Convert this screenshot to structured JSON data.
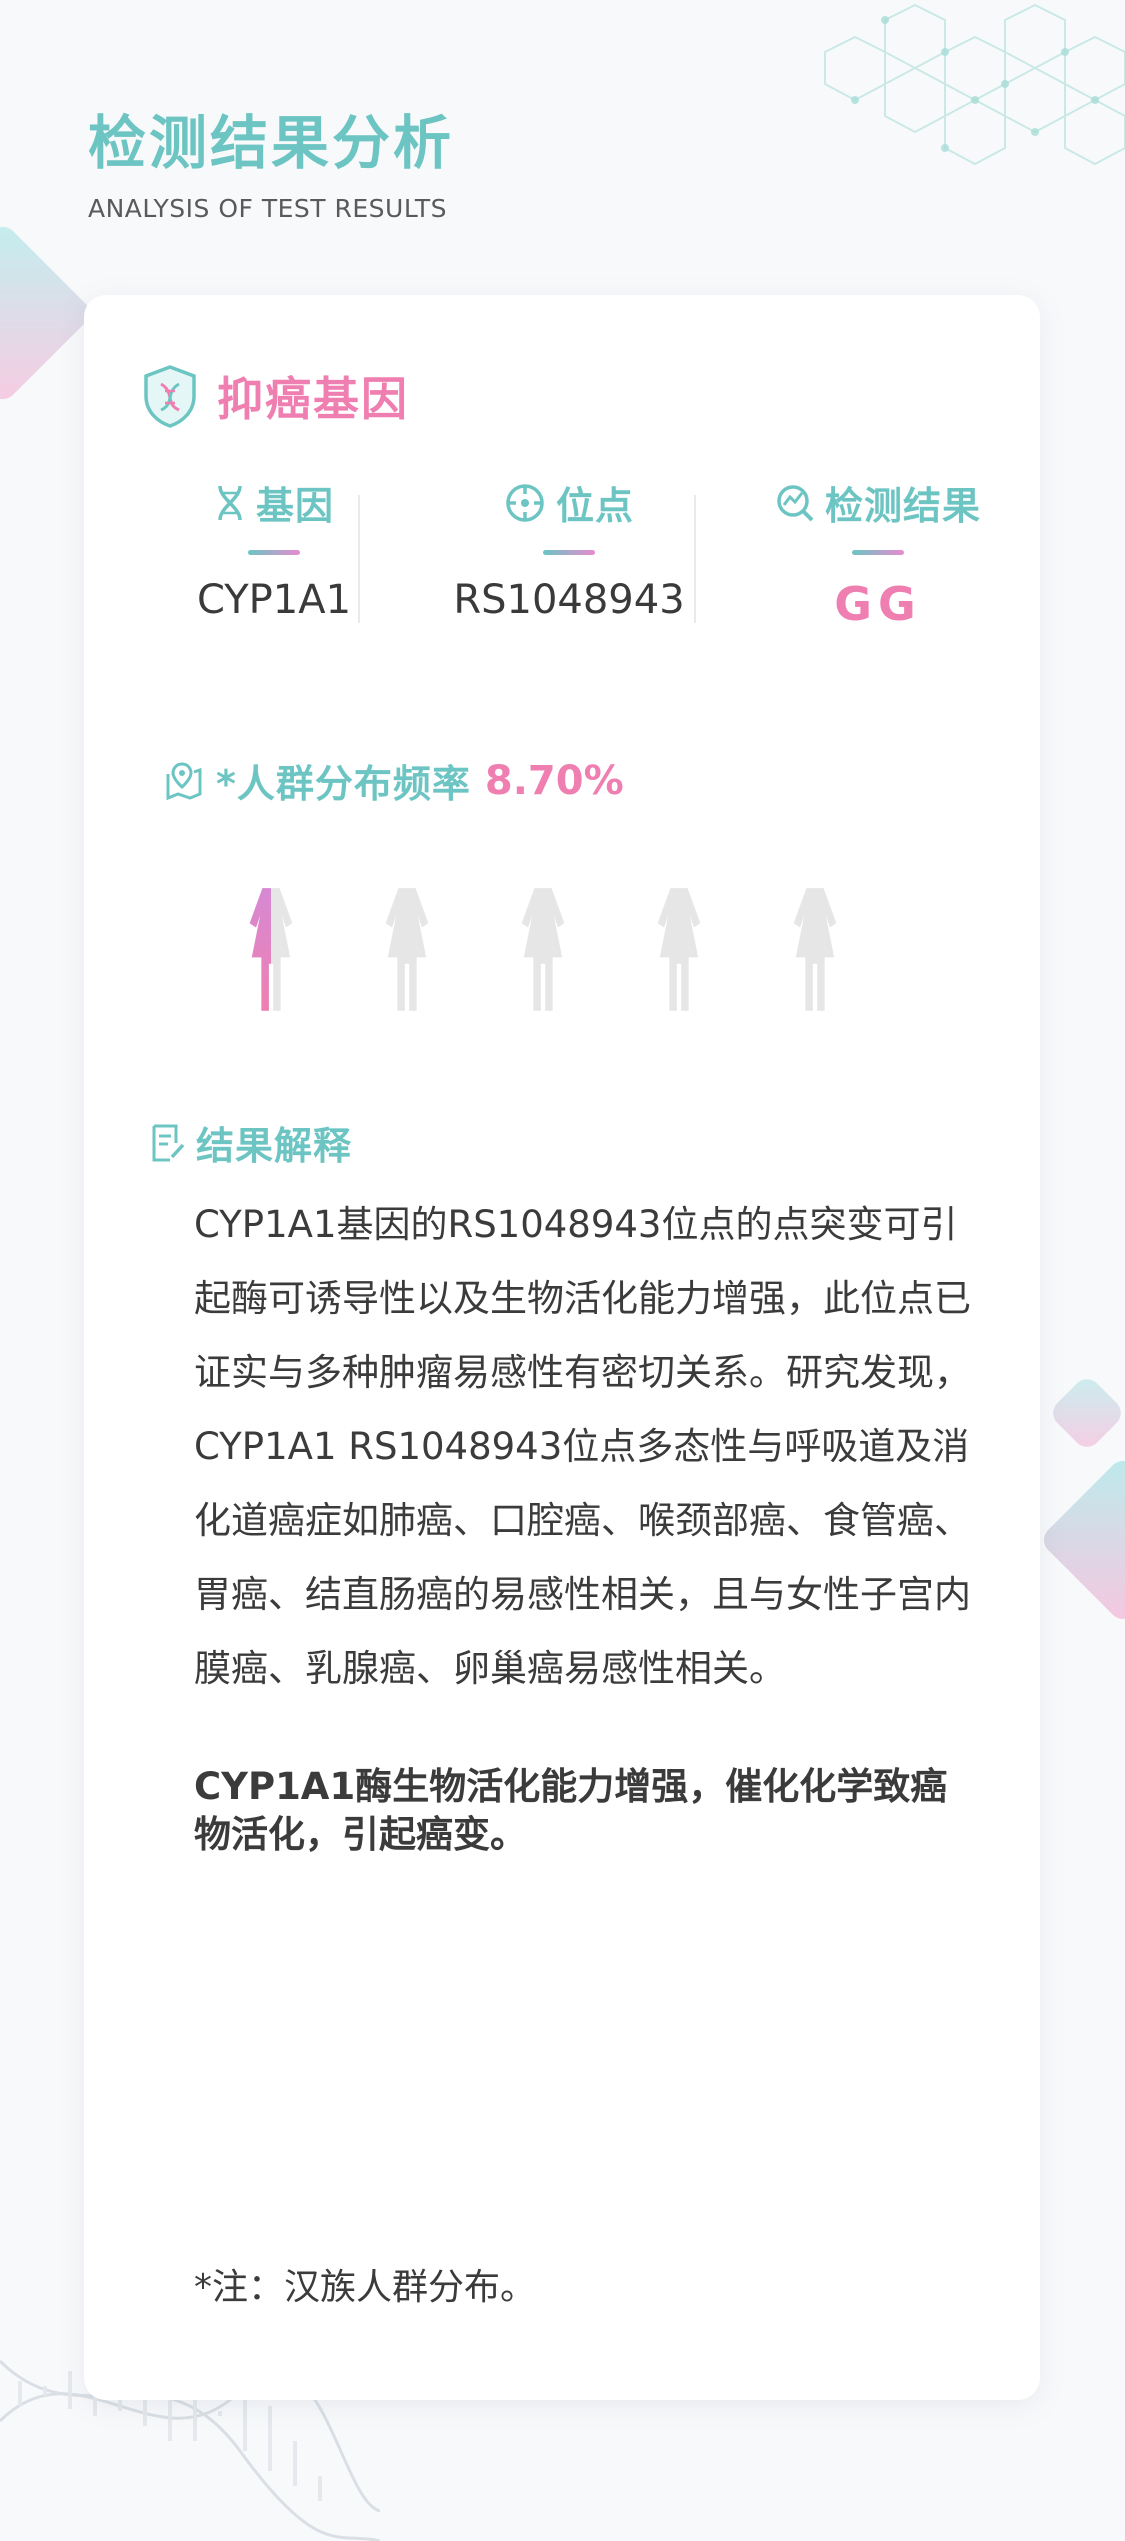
{
  "header": {
    "title": "检测结果分析",
    "subtitle": "ANALYSIS OF TEST RESULTS"
  },
  "section": {
    "title": "抑癌基因",
    "icon": "shield-dna-icon"
  },
  "columns": [
    {
      "label": "基因",
      "value": "CYP1A1",
      "icon": "dna-icon"
    },
    {
      "label": "位点",
      "value": "RS1048943",
      "icon": "crosshair-icon"
    },
    {
      "label": "检测结果",
      "value": "GG",
      "icon": "search-chart-icon"
    }
  ],
  "frequency": {
    "label": "*人群分布频率",
    "value": "8.70%",
    "fill_fraction": 0.087,
    "people_count": 5
  },
  "interpretation": {
    "title": "结果解释",
    "body": "CYP1A1基因的RS1048943位点的点突变可引起酶可诱导性以及生物活化能力增强，此位点已证实与多种肿瘤易感性有密切关系。研究发现，CYP1A1 RS1048943位点多态性与呼吸道及消化道癌症如肺癌、口腔癌、喉颈部癌、食管癌、胃癌、结直肠癌的易感性相关，且与女性子宫内膜癌、乳腺癌、卵巢癌易感性相关。",
    "bold_summary": "CYP1A1酶生物活化能力增强，催化化学致癌物活化，引起癌变。"
  },
  "note": "*注：汉族人群分布。",
  "colors": {
    "teal": "#6cc5c2",
    "pink": "#ef7fb0",
    "purple": "#c98ee6",
    "person_gray": "#e6e6e6"
  }
}
